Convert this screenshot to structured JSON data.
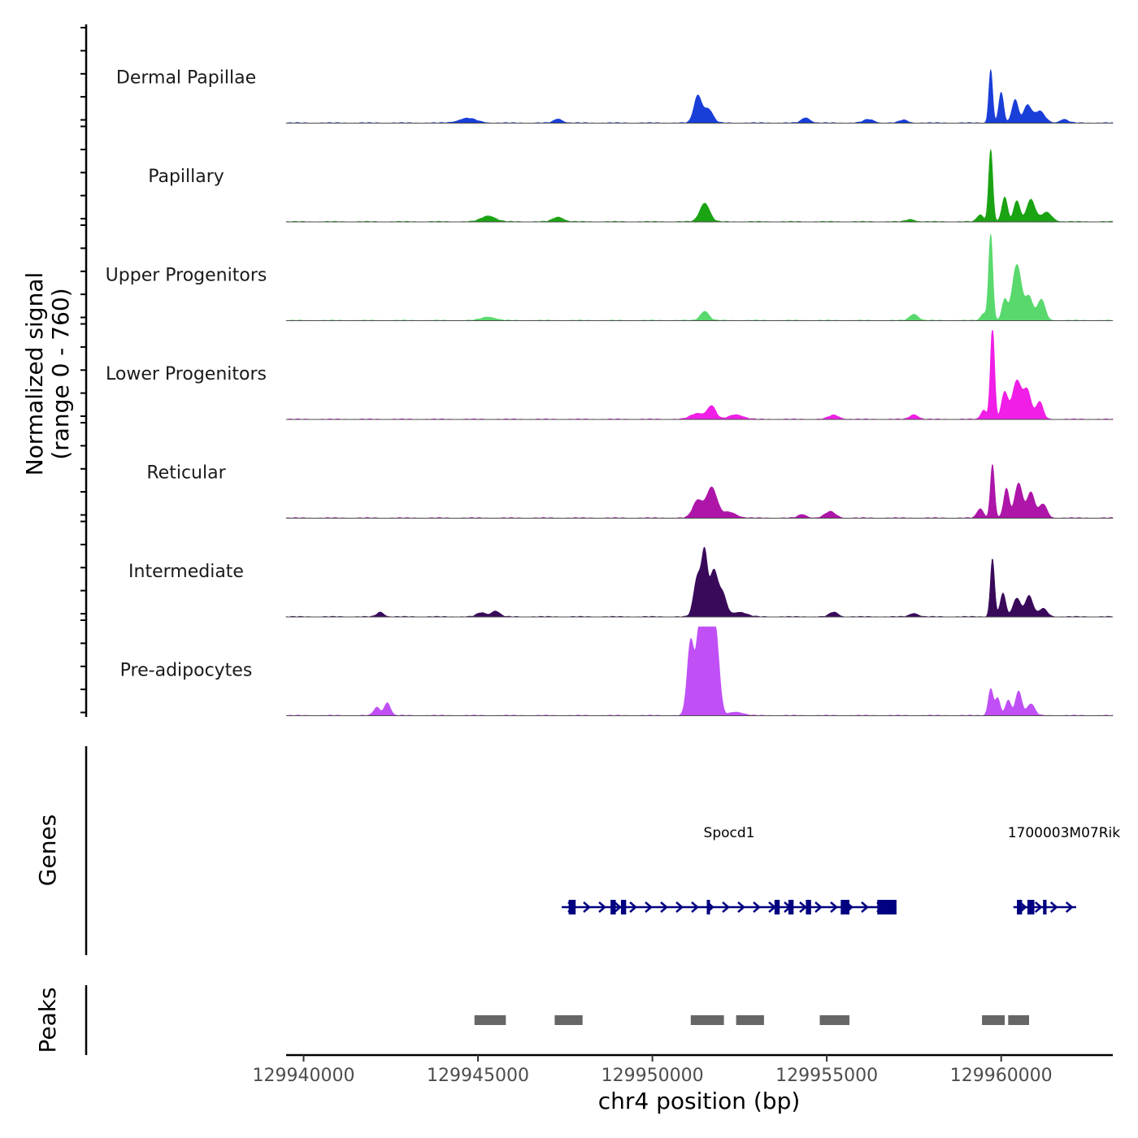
{
  "chart_data": {
    "type": "area",
    "title": "",
    "ylabel_line1": "Normalized signal",
    "ylabel_line2": "(range 0 - 760)",
    "ylim": [
      0,
      760
    ],
    "xlabel": "chr4 position (bp)",
    "xlim": [
      129939500,
      129963200
    ],
    "xticks": [
      129940000,
      129945000,
      129950000,
      129955000,
      129960000
    ],
    "xtick_labels": [
      "129940000",
      "129945000",
      "129950000",
      "129955000",
      "129960000"
    ],
    "series": [
      {
        "name": "Dermal Papillae",
        "color": "#1a3ed8",
        "peaks": [
          [
            129951300,
            230,
            110
          ],
          [
            129951600,
            120,
            130
          ],
          [
            129944700,
            40,
            250
          ],
          [
            129954400,
            45,
            120
          ],
          [
            129947300,
            35,
            120
          ],
          [
            129956200,
            30,
            150
          ],
          [
            129957200,
            25,
            120
          ],
          [
            129959700,
            460,
            55
          ],
          [
            129960000,
            260,
            70
          ],
          [
            129960400,
            200,
            90
          ],
          [
            129960750,
            150,
            110
          ],
          [
            129961100,
            100,
            150
          ],
          [
            129961800,
            30,
            120
          ]
        ]
      },
      {
        "name": "Papillary",
        "color": "#1aa313",
        "peaks": [
          [
            129951500,
            160,
            140
          ],
          [
            129945300,
            50,
            200
          ],
          [
            129947300,
            40,
            150
          ],
          [
            129957400,
            20,
            120
          ],
          [
            129959400,
            60,
            90
          ],
          [
            129959700,
            620,
            60
          ],
          [
            129960100,
            210,
            80
          ],
          [
            129960450,
            180,
            90
          ],
          [
            129960850,
            190,
            120
          ],
          [
            129961300,
            80,
            150
          ]
        ]
      },
      {
        "name": "Upper Progenitors",
        "color": "#59d96d",
        "peaks": [
          [
            129951500,
            80,
            120
          ],
          [
            129945300,
            30,
            200
          ],
          [
            129957500,
            55,
            120
          ],
          [
            129959500,
            60,
            80
          ],
          [
            129959700,
            740,
            60
          ],
          [
            129960100,
            170,
            80
          ],
          [
            129960450,
            480,
            130
          ],
          [
            129960800,
            200,
            110
          ],
          [
            129961150,
            180,
            110
          ]
        ]
      },
      {
        "name": "Lower Progenitors",
        "color": "#f01ee6",
        "peaks": [
          [
            129951300,
            50,
            200
          ],
          [
            129951700,
            110,
            120
          ],
          [
            129952400,
            40,
            200
          ],
          [
            129955200,
            35,
            150
          ],
          [
            129957500,
            40,
            120
          ],
          [
            129959500,
            80,
            80
          ],
          [
            129959750,
            800,
            60
          ],
          [
            129960100,
            230,
            90
          ],
          [
            129960450,
            330,
            130
          ],
          [
            129960750,
            240,
            110
          ],
          [
            129961100,
            150,
            100
          ]
        ]
      },
      {
        "name": "Reticular",
        "color": "#ad16a8",
        "peaks": [
          [
            129951300,
            150,
            140
          ],
          [
            129951700,
            260,
            150
          ],
          [
            129952200,
            50,
            200
          ],
          [
            129955100,
            55,
            150
          ],
          [
            129954300,
            30,
            120
          ],
          [
            129959400,
            80,
            90
          ],
          [
            129959750,
            460,
            60
          ],
          [
            129960150,
            250,
            80
          ],
          [
            129960500,
            300,
            110
          ],
          [
            129960850,
            220,
            110
          ],
          [
            129961200,
            120,
            110
          ]
        ]
      },
      {
        "name": "Intermediate",
        "color": "#3a0a5a",
        "peaks": [
          [
            129942200,
            40,
            100
          ],
          [
            129945100,
            35,
            130
          ],
          [
            129945500,
            50,
            120
          ],
          [
            129951300,
            350,
            110
          ],
          [
            129951500,
            500,
            80
          ],
          [
            129951750,
            380,
            110
          ],
          [
            129952000,
            200,
            120
          ],
          [
            129952500,
            40,
            200
          ],
          [
            129955200,
            40,
            120
          ],
          [
            129957500,
            30,
            120
          ],
          [
            129959750,
            500,
            60
          ],
          [
            129960050,
            200,
            80
          ],
          [
            129960450,
            160,
            110
          ],
          [
            129960800,
            180,
            110
          ],
          [
            129961200,
            70,
            120
          ]
        ]
      },
      {
        "name": "Pre-adipocytes",
        "color": "#c050f5",
        "peaks": [
          [
            129942100,
            70,
            90
          ],
          [
            129942400,
            110,
            90
          ],
          [
            129951100,
            640,
            100
          ],
          [
            129951350,
            700,
            90
          ],
          [
            129951550,
            790,
            100
          ],
          [
            129951800,
            760,
            110
          ],
          [
            129952400,
            30,
            200
          ],
          [
            129959700,
            230,
            70
          ],
          [
            129959900,
            150,
            70
          ],
          [
            129960200,
            130,
            80
          ],
          [
            129960500,
            210,
            90
          ],
          [
            129960850,
            100,
            110
          ]
        ]
      }
    ],
    "genes_track_label": "Genes",
    "genes": [
      {
        "name": "Spocd1",
        "label_x": 129952200,
        "start": 129947400,
        "end": 129957000,
        "strand": "+",
        "exons": [
          [
            129947600,
            129947800
          ],
          [
            129948800,
            129948950
          ],
          [
            129949100,
            129949250
          ],
          [
            129951560,
            129951640
          ],
          [
            129953500,
            129953650
          ],
          [
            129953900,
            129954050
          ],
          [
            129954400,
            129954550
          ],
          [
            129955400,
            129955650
          ],
          [
            129956450,
            129957000
          ]
        ]
      },
      {
        "name": "1700003M07Rik",
        "label_x": 129961800,
        "start": 129960350,
        "end": 129962150,
        "strand": "+",
        "exons": [
          [
            129960450,
            129960600
          ],
          [
            129960750,
            129960950
          ],
          [
            129961200,
            129961300
          ]
        ]
      }
    ],
    "peaks_track_label": "Peaks",
    "peak_regions": [
      [
        129944900,
        129945800
      ],
      [
        129947200,
        129948000
      ],
      [
        129951100,
        129952050
      ],
      [
        129952400,
        129953200
      ],
      [
        129954800,
        129955650
      ],
      [
        129959450,
        129960100
      ],
      [
        129960200,
        129960800
      ]
    ]
  }
}
